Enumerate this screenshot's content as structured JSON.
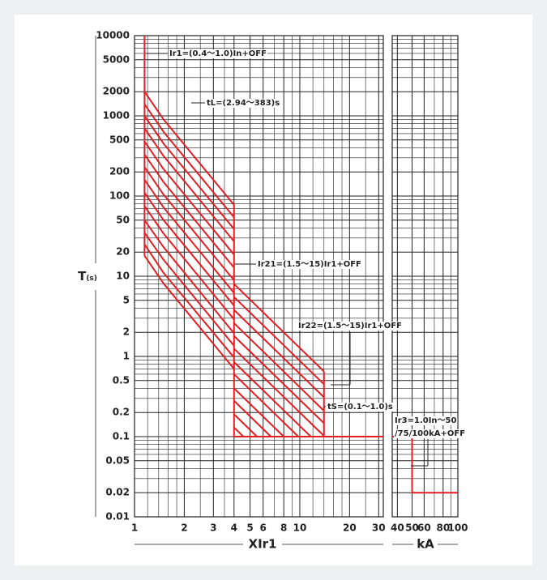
{
  "chart_data": {
    "type": "line",
    "color": "#e31e24",
    "ylabel": "T",
    "ylabel_sub": "(s)",
    "xlabel": "XIr1",
    "ylim": [
      0.01,
      10000
    ],
    "yticks": [
      10000,
      5000,
      2000,
      1000,
      500,
      200,
      100,
      50,
      20,
      10,
      5,
      2,
      1,
      0.5,
      0.2,
      0.1,
      0.05,
      0.02,
      0.01
    ],
    "yminor": [
      0.03,
      0.04,
      0.06,
      0.07,
      0.08,
      0.09,
      0.3,
      0.4,
      0.6,
      0.7,
      0.8,
      0.9,
      3,
      4,
      6,
      7,
      8,
      9,
      30,
      40,
      60,
      70,
      80,
      90,
      300,
      400,
      600,
      700,
      800,
      900,
      3000,
      4000,
      6000,
      7000,
      8000,
      9000
    ],
    "xlim": [
      1,
      32
    ],
    "xticks": [
      1,
      2,
      3,
      4,
      5,
      6,
      8,
      10,
      20,
      30
    ],
    "xminor": [
      1.2,
      1.4,
      1.6,
      1.8,
      2.5,
      3.5,
      7,
      9,
      12,
      14,
      16,
      18,
      25
    ],
    "curves": [
      {
        "x": [
          1.15,
          1.15
        ],
        "y": [
          10000,
          18
        ]
      },
      {
        "x": [
          1.15,
          1.5,
          4
        ],
        "y": [
          2000,
          900,
          77.6
        ]
      },
      {
        "x": [
          1.15,
          1.5,
          4
        ],
        "y": [
          1400,
          630,
          54.3
        ]
      },
      {
        "x": [
          1.15,
          1.5,
          4
        ],
        "y": [
          1000,
          450,
          38.8
        ]
      },
      {
        "x": [
          1.15,
          1.5,
          4
        ],
        "y": [
          700,
          315,
          27.2
        ]
      },
      {
        "x": [
          1.15,
          1.5,
          4
        ],
        "y": [
          480,
          216,
          18.6
        ]
      },
      {
        "x": [
          1.15,
          1.5,
          4
        ],
        "y": [
          330,
          149,
          12.8
        ]
      },
      {
        "x": [
          1.15,
          1.5,
          4
        ],
        "y": [
          230,
          104,
          8.9
        ]
      },
      {
        "x": [
          1.15,
          1.5,
          4
        ],
        "y": [
          160,
          72,
          6.2
        ]
      },
      {
        "x": [
          1.15,
          1.5,
          4
        ],
        "y": [
          110,
          50,
          4.3
        ]
      },
      {
        "x": [
          1.15,
          1.5,
          4
        ],
        "y": [
          75,
          34,
          2.9
        ]
      },
      {
        "x": [
          1.15,
          1.5,
          4
        ],
        "y": [
          50,
          23,
          1.94
        ]
      },
      {
        "x": [
          1.15,
          1.5,
          4
        ],
        "y": [
          35,
          16,
          1.36
        ]
      },
      {
        "x": [
          1.15,
          1.5,
          4
        ],
        "y": [
          25,
          11,
          0.97
        ]
      },
      {
        "x": [
          1.15,
          1.5,
          4
        ],
        "y": [
          18,
          8.1,
          0.7
        ]
      },
      {
        "x": [
          4,
          4
        ],
        "y": [
          80,
          0.1
        ]
      },
      {
        "x": [
          4,
          14
        ],
        "y": [
          8,
          0.65
        ]
      },
      {
        "x": [
          4,
          14
        ],
        "y": [
          5.5,
          0.45
        ]
      },
      {
        "x": [
          4,
          14
        ],
        "y": [
          3.8,
          0.31
        ]
      },
      {
        "x": [
          4,
          14
        ],
        "y": [
          2.6,
          0.21
        ]
      },
      {
        "x": [
          4,
          14
        ],
        "y": [
          1.8,
          0.147
        ]
      },
      {
        "x": [
          4,
          14
        ],
        "y": [
          1.25,
          0.102
        ]
      },
      {
        "x": [
          4,
          11.66
        ],
        "y": [
          0.85,
          0.1
        ]
      },
      {
        "x": [
          4,
          9.8
        ],
        "y": [
          0.6,
          0.1
        ]
      },
      {
        "x": [
          4,
          8
        ],
        "y": [
          0.4,
          0.1
        ]
      },
      {
        "x": [
          4,
          6.69
        ],
        "y": [
          0.28,
          0.1
        ]
      },
      {
        "x": [
          4,
          5.51
        ],
        "y": [
          0.19,
          0.1
        ]
      },
      {
        "x": [
          4,
          4.56
        ],
        "y": [
          0.13,
          0.1
        ]
      },
      {
        "x": [
          14,
          14
        ],
        "y": [
          0.65,
          0.1
        ]
      },
      {
        "x": [
          4,
          32
        ],
        "y": [
          0.1,
          0.1
        ]
      }
    ],
    "panel2": {
      "xlabel": "kA",
      "xlim": [
        37,
        100
      ],
      "xticks": [
        40,
        50,
        60,
        80,
        100
      ],
      "xminor": [
        70,
        90
      ],
      "curves": [
        {
          "x": [
            37,
            50,
            50,
            100
          ],
          "y": [
            0.1,
            0.1,
            0.02,
            0.02
          ]
        }
      ]
    },
    "annotations": [
      "Ir1=(0.4～1.0)In+OFF",
      "tL=(2.94～383)s",
      "Ir21=(1.5～15)Ir1+OFF",
      "Ir22=(1.5～15)Ir1+OFF",
      "tS=(0.1～1.0)s",
      "Ir3=1.0In～50",
      "/75/100kA+OFF"
    ]
  }
}
